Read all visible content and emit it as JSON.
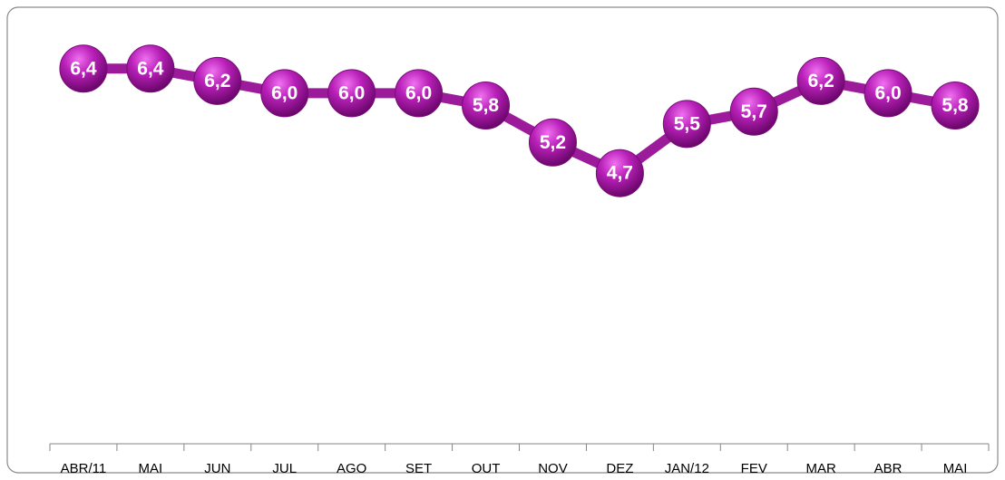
{
  "chart_data": {
    "type": "line",
    "categories": [
      "ABR/11",
      "MAI",
      "JUN",
      "JUL",
      "AGO",
      "SET",
      "OUT",
      "NOV",
      "DEZ",
      "JAN/12",
      "FEV",
      "MAR",
      "ABR",
      "MAI"
    ],
    "values": [
      6.4,
      6.4,
      6.2,
      6.0,
      6.0,
      6.0,
      5.8,
      5.2,
      4.7,
      5.5,
      5.7,
      6.2,
      6.0,
      5.8
    ],
    "value_labels": [
      "6,4",
      "6,4",
      "6,2",
      "6,0",
      "6,0",
      "6,0",
      "5,8",
      "5,2",
      "4,7",
      "5,5",
      "5,7",
      "6,2",
      "6,0",
      "5,8"
    ],
    "color": "#9b1b9b",
    "ylim": [
      0.3,
      7
    ]
  }
}
